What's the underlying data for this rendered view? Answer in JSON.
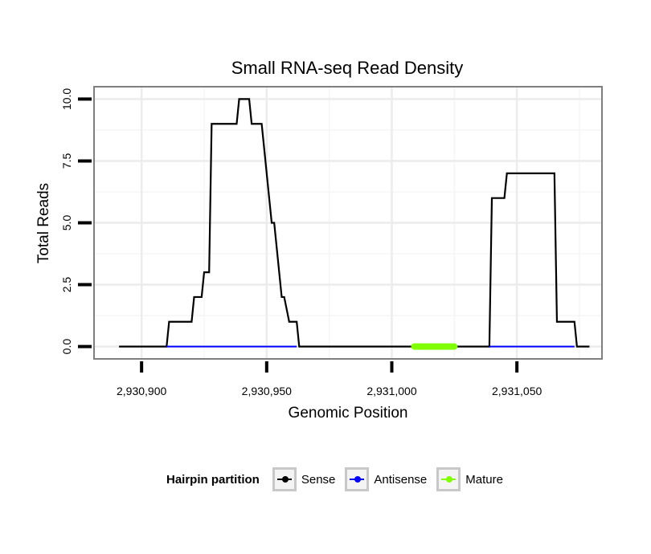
{
  "chart_data": {
    "type": "line",
    "title": "Small RNA-seq Read Density",
    "xlabel": "Genomic Position",
    "ylabel": "Total Reads",
    "xlim": [
      2930881,
      2931084
    ],
    "ylim": [
      -0.5,
      10.5
    ],
    "x_ticks": [
      2930900,
      2930950,
      2931000,
      2931050
    ],
    "x_tick_labels": [
      "2,930,900",
      "2,930,950",
      "2,931,000",
      "2,931,050"
    ],
    "y_ticks": [
      0,
      2.5,
      5,
      7.5,
      10
    ],
    "y_tick_labels": [
      "0.0",
      "2.5",
      "5.0",
      "7.5",
      "10.0"
    ],
    "grid": true,
    "legend_title": "Hairpin partition",
    "legend_position": "bottom",
    "series": [
      {
        "name": "Sense",
        "color": "#000000",
        "x": [
          2930891,
          2930910,
          2930911,
          2930920,
          2930921,
          2930924,
          2930925,
          2930927,
          2930928,
          2930929,
          2930938,
          2930939,
          2930943,
          2930944,
          2930948,
          2930952,
          2930953,
          2930956,
          2930957,
          2930959,
          2930962,
          2930963,
          2931039,
          2931040,
          2931045,
          2931046,
          2931065,
          2931066,
          2931073,
          2931074,
          2931079
        ],
        "y": [
          0,
          0,
          1,
          1,
          2,
          2,
          3,
          3,
          9,
          9,
          9,
          10,
          10,
          9,
          9,
          5,
          5,
          2,
          2,
          1,
          1,
          0,
          0,
          6,
          6,
          7,
          7,
          1,
          1,
          0,
          0
        ]
      },
      {
        "name": "Antisense",
        "color": "#0000ff",
        "x": [
          2930910,
          2930962,
          2931039,
          2931073
        ],
        "y": [
          0,
          0,
          0,
          0
        ],
        "segments": [
          [
            2930910,
            2930962
          ],
          [
            2931039,
            2931073
          ]
        ]
      },
      {
        "name": "Mature",
        "color": "#7fff00",
        "x": [
          2931009,
          2931025
        ],
        "y": [
          0,
          0
        ]
      }
    ]
  }
}
